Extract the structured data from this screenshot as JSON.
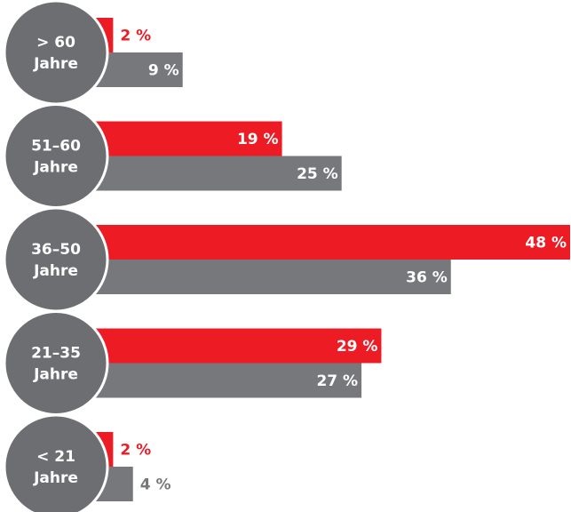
{
  "chart_data": {
    "type": "bar",
    "orientation": "horizontal",
    "categories": [
      [
        "> 60",
        "Jahre"
      ],
      [
        "51–60",
        "Jahre"
      ],
      [
        "36–50",
        "Jahre"
      ],
      [
        "21–35",
        "Jahre"
      ],
      [
        "< 21",
        "Jahre"
      ]
    ],
    "series": [
      {
        "color": "#ed1c24",
        "values": [
          2,
          19,
          48,
          29,
          2
        ],
        "value_labels": [
          "2 %",
          "19 %",
          "48 %",
          "29 %",
          "2 %"
        ]
      },
      {
        "color": "#77787b",
        "values": [
          9,
          25,
          36,
          27,
          4
        ],
        "value_labels": [
          "9 %",
          "25 %",
          "36 %",
          "27 %",
          "4 %"
        ]
      }
    ],
    "label_circle_color": "#6d6e71",
    "xlim": [
      0,
      48
    ]
  }
}
